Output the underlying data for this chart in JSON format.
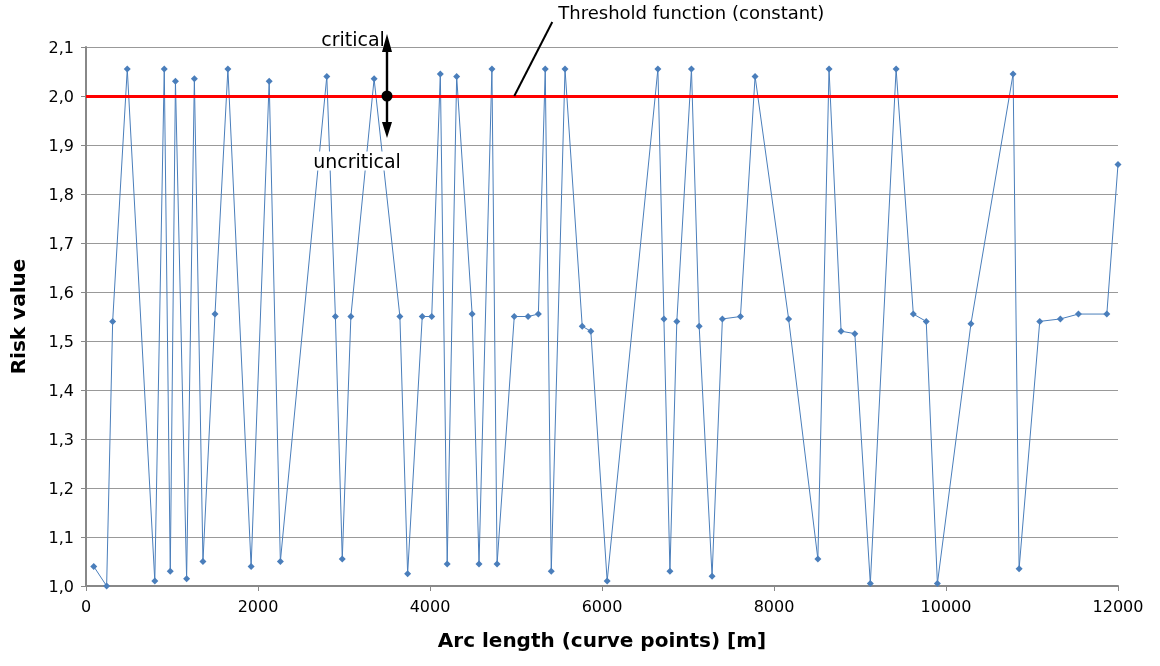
{
  "chart_data": {
    "type": "line",
    "xlabel": "Arc length (curve points) [m]",
    "ylabel": "Risk value",
    "x": [
      90,
      240,
      310,
      480,
      800,
      910,
      980,
      1040,
      1170,
      1260,
      1360,
      1500,
      1650,
      1920,
      2130,
      2260,
      2800,
      2900,
      2980,
      3080,
      3350,
      3650,
      3740,
      3910,
      4020,
      4120,
      4200,
      4310,
      4490,
      4570,
      4720,
      4780,
      4980,
      5140,
      5260,
      5340,
      5410,
      5570,
      5770,
      5870,
      6060,
      6650,
      6720,
      6790,
      6870,
      7040,
      7130,
      7280,
      7400,
      7610,
      7780,
      8170,
      8510,
      8640,
      8780,
      8940,
      9120,
      9420,
      9620,
      9770,
      9900,
      10290,
      10780,
      10850,
      11090,
      11330,
      11540,
      11870,
      12000
    ],
    "series": [
      {
        "color": "#4a7ebb",
        "values": [
          1.04,
          1.0,
          1.54,
          2.055,
          1.01,
          2.055,
          1.03,
          2.03,
          1.015,
          2.035,
          1.05,
          1.555,
          2.055,
          1.04,
          2.03,
          1.05,
          2.04,
          1.55,
          1.055,
          1.55,
          2.035,
          1.55,
          1.025,
          1.55,
          1.55,
          2.045,
          1.045,
          2.04,
          1.555,
          1.045,
          2.055,
          1.045,
          1.55,
          1.55,
          1.555,
          2.055,
          1.03,
          2.055,
          1.53,
          1.52,
          1.01,
          2.055,
          1.545,
          1.03,
          1.54,
          2.055,
          1.53,
          1.02,
          1.545,
          1.55,
          2.04,
          1.545,
          1.055,
          2.055,
          1.52,
          1.515,
          1.005,
          2.055,
          1.555,
          1.54,
          1.005,
          1.535,
          2.045,
          1.035,
          1.54,
          1.545,
          1.555,
          1.555,
          1.86
        ]
      }
    ],
    "xlim": [
      0,
      12000
    ],
    "xticks": [
      0,
      2000,
      4000,
      6000,
      8000,
      10000,
      12000
    ],
    "ylim": [
      1.0,
      2.1
    ],
    "yticks": [
      {
        "value": 1.0,
        "label": "1,0"
      },
      {
        "value": 1.1,
        "label": "1,1"
      },
      {
        "value": 1.2,
        "label": "1,2"
      },
      {
        "value": 1.3,
        "label": "1,3"
      },
      {
        "value": 1.4,
        "label": "1,4"
      },
      {
        "value": 1.5,
        "label": "1,5"
      },
      {
        "value": 1.6,
        "label": "1,6"
      },
      {
        "value": 1.7,
        "label": "1,7"
      },
      {
        "value": 1.8,
        "label": "1,8"
      },
      {
        "value": 1.9,
        "label": "1,9"
      },
      {
        "value": 2.0,
        "label": "2,0"
      },
      {
        "value": 2.1,
        "label": "2,1"
      }
    ],
    "grid": "y",
    "marker": "diamond",
    "line_style": "solid",
    "ref_lines": [
      {
        "axis": "y",
        "value": 2.0,
        "label": "Threshold function (constant)",
        "color": "#ff0000"
      }
    ],
    "annotations": [
      {
        "text": "critical",
        "x": 3500,
        "y": 2.0
      },
      {
        "text": "uncritical",
        "x": 3500,
        "y": 2.0
      }
    ]
  }
}
